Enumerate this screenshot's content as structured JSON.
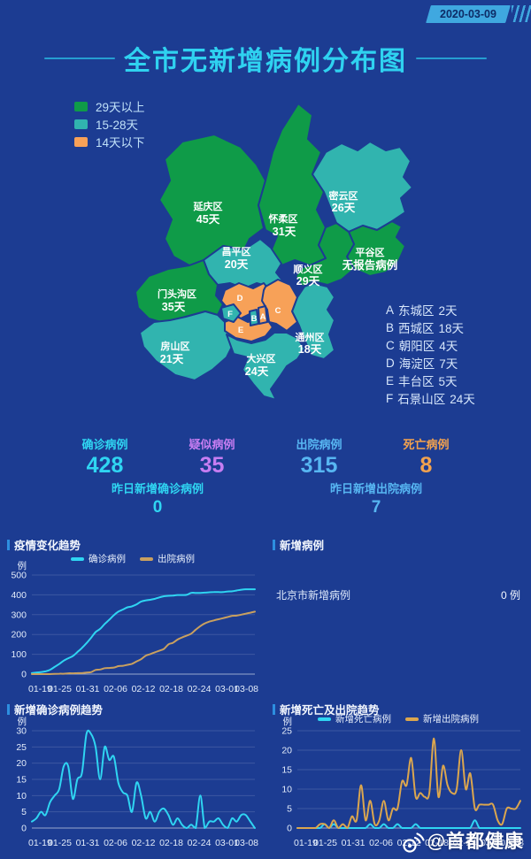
{
  "header": {
    "date": "2020-03-09",
    "title": "全市无新增病例分布图"
  },
  "colors": {
    "background": "#1c3c92",
    "green": "#0f9b48",
    "teal": "#31b4af",
    "orange": "#f7a158",
    "cyan": "#2fd5f2",
    "purple": "#c77df2",
    "light_blue": "#57b6f2",
    "stat_orange": "#f2a24e",
    "badge_blue": "#3fa8e0"
  },
  "legend": [
    {
      "label": "29天以上"
    },
    {
      "label": "15-28天"
    },
    {
      "label": "14天以下"
    }
  ],
  "map": {
    "districts": [
      {
        "name": "延庆区",
        "days": "45天"
      },
      {
        "name": "怀柔区",
        "days": "31天"
      },
      {
        "name": "密云区",
        "days": "26天"
      },
      {
        "name": "平谷区",
        "days": "无报告病例"
      },
      {
        "name": "顺义区",
        "days": "29天"
      },
      {
        "name": "昌平区",
        "days": "20天"
      },
      {
        "name": "门头沟区",
        "days": "35天"
      },
      {
        "name": "房山区",
        "days": "21天"
      },
      {
        "name": "大兴区",
        "days": "24天"
      },
      {
        "name": "通州区",
        "days": "18天"
      }
    ],
    "inner": [
      {
        "letter": "A"
      },
      {
        "letter": "B"
      },
      {
        "letter": "C"
      },
      {
        "letter": "D"
      },
      {
        "letter": "E"
      },
      {
        "letter": "F"
      }
    ]
  },
  "district_list": [
    {
      "letter": "A",
      "name": "东城区",
      "days": "2天"
    },
    {
      "letter": "B",
      "name": "西城区",
      "days": "18天"
    },
    {
      "letter": "C",
      "name": "朝阳区",
      "days": "4天"
    },
    {
      "letter": "D",
      "name": "海淀区",
      "days": "7天"
    },
    {
      "letter": "E",
      "name": "丰台区",
      "days": "5天"
    },
    {
      "letter": "F",
      "name": "石景山区",
      "days": "24天"
    }
  ],
  "stats": {
    "confirmed": {
      "label": "确诊病例",
      "value": "428"
    },
    "suspected": {
      "label": "疑似病例",
      "value": "35"
    },
    "discharged": {
      "label": "出院病例",
      "value": "315"
    },
    "deaths": {
      "label": "死亡病例",
      "value": "8"
    },
    "new_confirmed": {
      "label": "昨日新增确诊病例",
      "value": "0"
    },
    "new_discharged": {
      "label": "昨日新增出院病例",
      "value": "7"
    }
  },
  "sections": {
    "trend": {
      "title": "疫情变化趋势"
    },
    "new_cases": {
      "title": "新增病例",
      "row_label": "北京市新增病例",
      "row_value": "0 例"
    },
    "new_confirmed": {
      "title": "新增确诊病例趋势"
    },
    "death_discharge": {
      "title": "新增死亡及出院趋势"
    }
  },
  "watermark": "@首都健康",
  "chart_data": {
    "epidemic_trend": {
      "type": "line",
      "title": "疫情变化趋势",
      "unit": "例",
      "ylim": [
        0,
        500
      ],
      "yticks": [
        0,
        100,
        200,
        300,
        400,
        500
      ],
      "x_start": "01-19",
      "x_end": "03-08",
      "xlabels": [
        "01-19",
        "01-25",
        "01-31",
        "02-06",
        "02-12",
        "02-18",
        "02-24",
        "03-01",
        "03-08"
      ],
      "series": [
        {
          "name": "确诊病例",
          "color": "#2fd5f2",
          "values": [
            5,
            8,
            10,
            14,
            22,
            36,
            51,
            68,
            80,
            91,
            111,
            132,
            156,
            183,
            212,
            228,
            253,
            274,
            297,
            315,
            326,
            337,
            342,
            352,
            366,
            372,
            375,
            380,
            387,
            393,
            395,
            396,
            399,
            399,
            400,
            410,
            410,
            410,
            411,
            413,
            414,
            414,
            414,
            417,
            418,
            422,
            426,
            428,
            428,
            428
          ]
        },
        {
          "name": "出院病例",
          "color": "#c9a05f",
          "values": [
            0,
            0,
            0,
            0,
            0,
            1,
            2,
            2,
            4,
            4,
            5,
            5,
            8,
            10,
            21,
            23,
            30,
            31,
            33,
            40,
            42,
            47,
            52,
            64,
            75,
            93,
            101,
            110,
            118,
            127,
            150,
            158,
            174,
            185,
            194,
            204,
            224,
            242,
            256,
            265,
            271,
            277,
            282,
            288,
            294,
            295,
            300,
            305,
            310,
            315
          ]
        }
      ]
    },
    "new_cases_chart": {
      "type": "table",
      "title": "新增病例",
      "rows": [
        {
          "label": "北京市新增病例",
          "value": "0 例"
        }
      ]
    },
    "new_confirmed_trend": {
      "type": "line",
      "title": "新增确诊病例趋势",
      "unit": "例",
      "ylim": [
        0,
        30
      ],
      "yticks": [
        0,
        5,
        10,
        15,
        20,
        25,
        30
      ],
      "x_start": "01-19",
      "x_end": "03-08",
      "xlabels": [
        "01-19",
        "01-25",
        "01-31",
        "02-06",
        "02-12",
        "02-18",
        "02-24",
        "03-01",
        "03-08"
      ],
      "series": [
        {
          "name": "新增确诊病例",
          "color": "#2fd5f2",
          "values": [
            2,
            3,
            5,
            4,
            8,
            10,
            12,
            19,
            19,
            9,
            15,
            17,
            29,
            29,
            25,
            15,
            25,
            21,
            22,
            14,
            11,
            10,
            5,
            14,
            10,
            3,
            5,
            2,
            5,
            6,
            4,
            1,
            3,
            1,
            0,
            1,
            0,
            10,
            0,
            2,
            2,
            3,
            1,
            0,
            3,
            2,
            4,
            4,
            2,
            0
          ]
        }
      ]
    },
    "death_discharge_trend": {
      "type": "line",
      "title": "新增死亡及出院趋势",
      "unit": "例",
      "ylim": [
        0,
        25
      ],
      "yticks": [
        0,
        5,
        10,
        15,
        20,
        25
      ],
      "x_start": "01-19",
      "x_end": "03-08",
      "xlabels": [
        "01-19",
        "01-25",
        "01-31",
        "02-06",
        "02-12",
        "02-18",
        "02-24",
        "03-01",
        "03-08"
      ],
      "series": [
        {
          "name": "新增死亡病例",
          "color": "#2fd5f2",
          "values": [
            0,
            0,
            0,
            0,
            0,
            0,
            1,
            0,
            1,
            0,
            0,
            0,
            0,
            0,
            0,
            0,
            1,
            0,
            0,
            1,
            0,
            0,
            1,
            0,
            0,
            0,
            1,
            0,
            0,
            0,
            0,
            0,
            0,
            0,
            0,
            0,
            0,
            0,
            0,
            2,
            0,
            0,
            0,
            0,
            0,
            0,
            0,
            0,
            0,
            0
          ]
        },
        {
          "name": "新增出院病例",
          "color": "#dba64e",
          "values": [
            0,
            0,
            0,
            0,
            0,
            1,
            1,
            0,
            2,
            0,
            1,
            0,
            3,
            2,
            11,
            2,
            7,
            1,
            2,
            7,
            2,
            5,
            5,
            12,
            11,
            18,
            8,
            9,
            8,
            9,
            23,
            8,
            16,
            11,
            9,
            10,
            20,
            10,
            14,
            5,
            6,
            6,
            6,
            6,
            2,
            1,
            5,
            5,
            5,
            7
          ]
        }
      ]
    }
  }
}
